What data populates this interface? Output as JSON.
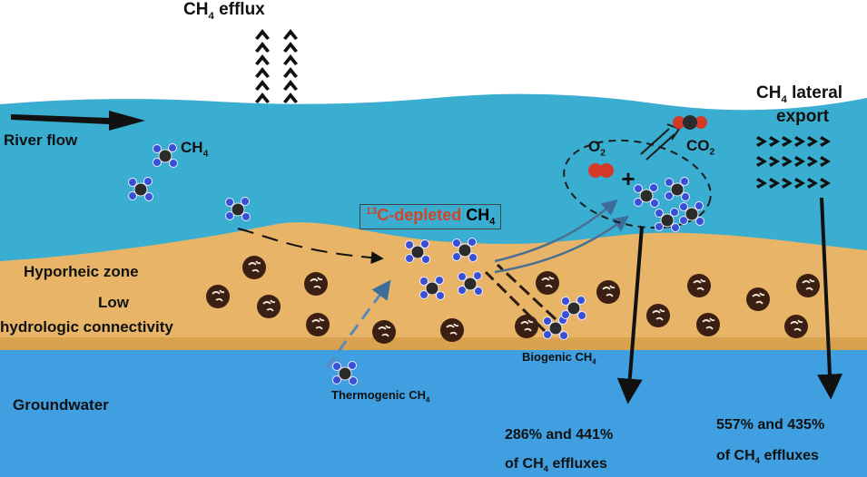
{
  "labels": {
    "ch4_efflux": "CH4 efflux",
    "river_flow": "River flow",
    "ch4_molecule": "CH4",
    "o2": "O2",
    "co2": "CO2",
    "plus": "+",
    "lateral_line1": "CH4 lateral",
    "lateral_line2": "export",
    "depleted_sup": "13",
    "depleted_text": "C-depleted",
    "depleted_ch4": "CH4",
    "hyporheic": "Hyporheic zone",
    "low": "Low",
    "connectivity": "hydrologic connectivity",
    "biogenic": "Biogenic CH4",
    "thermogenic": "Thermogenic CH4",
    "groundwater": "Groundwater",
    "stat1_line1": "286% and 441%",
    "stat1_line2": "of CH4 effluxes",
    "stat2_line1": "557% and 435%",
    "stat2_line2": "of CH4 effluxes"
  },
  "colors": {
    "river": "#3aaed0",
    "sediment": "#e7b468",
    "groundwater": "#3f9fe0",
    "particle": "#3a1f12",
    "hydrogen": "#3a4fd8",
    "carbon": "#2b2b2b",
    "oxygen": "#d43a2a",
    "arrow": "#111111",
    "accent_red": "#d0452a"
  }
}
